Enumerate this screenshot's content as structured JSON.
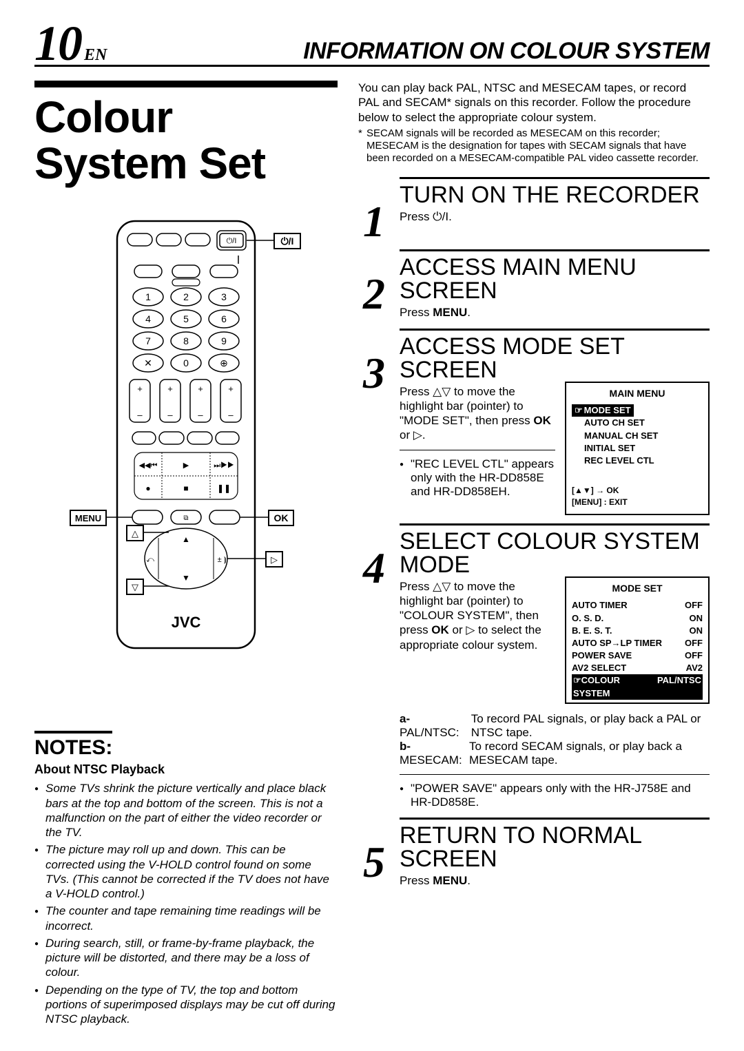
{
  "header": {
    "page_number": "10",
    "page_lang": "EN",
    "title": "INFORMATION ON COLOUR SYSTEM"
  },
  "main_title_line1": "Colour",
  "main_title_line2": "System Set",
  "remote": {
    "brand": "JVC",
    "labels": {
      "power": "⏻/I",
      "ok": "OK",
      "menu": "MENU",
      "up": "△",
      "down": "▽",
      "right": "▷"
    }
  },
  "intro": {
    "text": "You can play back PAL, NTSC and MESECAM tapes, or record PAL and SECAM* signals on this recorder. Follow the procedure below to select the appropriate colour system.",
    "footnote": "SECAM signals will be recorded as MESECAM on this recorder; MESECAM is the designation for tapes with SECAM signals that have been recorded on a MESECAM-compatible PAL video cassette recorder."
  },
  "steps": [
    {
      "num": "1",
      "title": "TURN ON THE RECORDER",
      "text": "Press ⏻/I."
    },
    {
      "num": "2",
      "title": "ACCESS MAIN MENU SCREEN",
      "text_pre": "Press ",
      "bold": "MENU",
      "text_post": "."
    },
    {
      "num": "3",
      "title": "ACCESS MODE SET SCREEN",
      "text_html": "Press △▽ to move the highlight bar (pointer) to \"MODE SET\", then press <b>OK</b> or ▷.",
      "bullet": "\"REC LEVEL CTL\" appears only with the HR-DD858E and HR-DD858EH.",
      "menu": {
        "title": "MAIN MENU",
        "highlight": "MODE SET",
        "items": [
          "AUTO CH SET",
          "MANUAL CH SET",
          "INITIAL SET",
          "REC LEVEL CTL"
        ],
        "footer1": "[▲▼] → OK",
        "footer2": "[MENU] : EXIT"
      }
    },
    {
      "num": "4",
      "title": "SELECT COLOUR SYSTEM MODE",
      "text_html": "Press △▽ to move the highlight bar (pointer) to \"COLOUR SYSTEM\", then press <b>OK</b> or ▷ to select the appropriate colour system.",
      "menu": {
        "title": "MODE SET",
        "rows": [
          [
            "AUTO TIMER",
            "OFF"
          ],
          [
            "O. S. D.",
            "ON"
          ],
          [
            "B. E. S. T.",
            "ON"
          ],
          [
            "AUTO SP→LP TIMER",
            "OFF"
          ],
          [
            "POWER SAVE",
            "OFF"
          ],
          [
            "AV2 SELECT",
            "AV2"
          ]
        ],
        "highlight_row": [
          "☞COLOUR SYSTEM",
          "PAL/NTSC"
        ]
      },
      "options": [
        {
          "label": "a-",
          "name": "PAL/NTSC:",
          "desc": "To record PAL signals, or play back a PAL or NTSC tape."
        },
        {
          "label": "b-",
          "name": "MESECAM:",
          "desc": "To record SECAM signals, or play back a MESECAM tape."
        }
      ],
      "bullet2": "\"POWER SAVE\" appears only with the HR-J758E and HR-DD858E."
    },
    {
      "num": "5",
      "title": "RETURN TO NORMAL SCREEN",
      "text_pre": "Press ",
      "bold": "MENU",
      "text_post": "."
    }
  ],
  "notes": {
    "heading": "NOTES:",
    "sub": "About NTSC Playback",
    "items": [
      "Some TVs shrink the picture vertically and place black bars at the top and bottom of the screen. This is not a malfunction on the part of either the video recorder or the TV.",
      "The picture may roll up and down. This can be corrected using the V-HOLD control found on some TVs. (This cannot be corrected if the TV does not have a V-HOLD control.)",
      "The counter and tape remaining time readings will be incorrect.",
      "During search, still, or frame-by-frame playback, the picture will be distorted, and there may be a loss of colour.",
      "Depending on the type of TV, the top and bottom portions of superimposed displays may be cut off during NTSC playback."
    ]
  }
}
